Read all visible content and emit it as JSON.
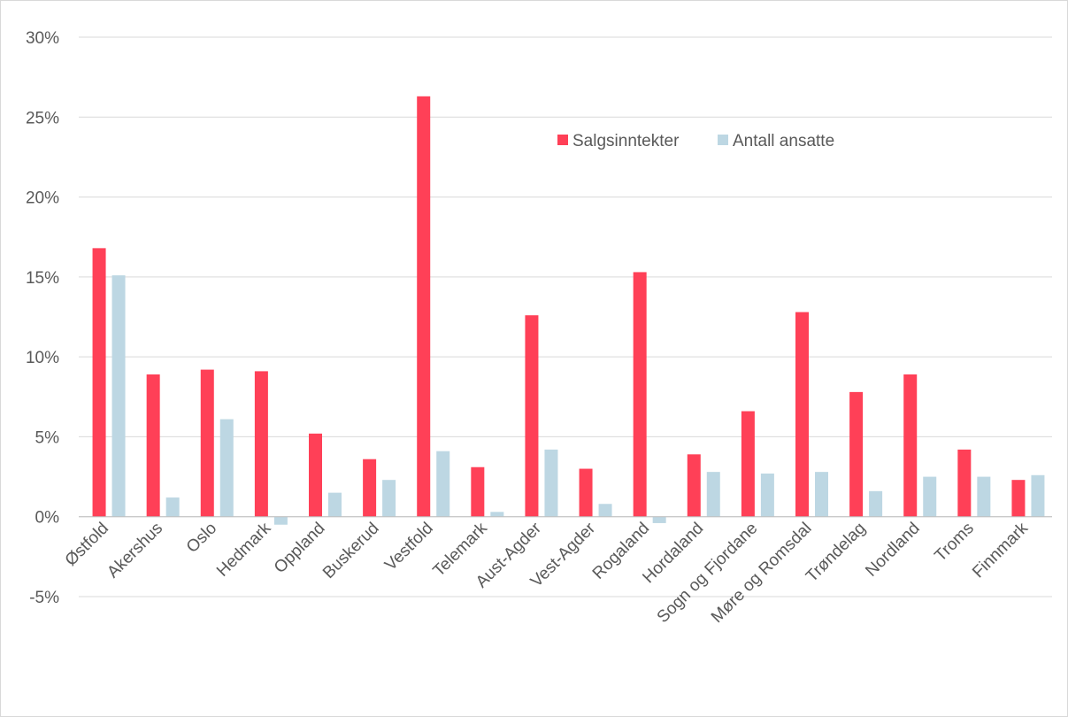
{
  "chart_data": {
    "type": "bar",
    "title": "",
    "xlabel": "",
    "ylabel": "",
    "categories": [
      "Østfold",
      "Akershus",
      "Oslo",
      "Hedmark",
      "Oppland",
      "Buskerud",
      "Vestfold",
      "Telemark",
      "Aust-Agder",
      "Vest-Agder",
      "Rogaland",
      "Hordaland",
      "Sogn og Fjordane",
      "Møre og Romsdal",
      "Trøndelag",
      "Nordland",
      "Troms",
      "Finnmark"
    ],
    "series": [
      {
        "name": "Salgsinntekter",
        "color": "#ff4057",
        "values": [
          16.8,
          8.9,
          9.2,
          9.1,
          5.2,
          3.6,
          26.3,
          3.1,
          12.6,
          3.0,
          15.3,
          3.9,
          6.6,
          12.8,
          7.8,
          8.9,
          4.2,
          2.3
        ]
      },
      {
        "name": "Antall ansatte",
        "color": "#bdd7e3",
        "values": [
          15.1,
          1.2,
          6.1,
          -0.5,
          1.5,
          2.3,
          4.1,
          0.3,
          4.2,
          0.8,
          -0.4,
          2.8,
          2.7,
          2.8,
          1.6,
          2.5,
          2.5,
          2.6
        ]
      }
    ],
    "ylim": [
      -5,
      30
    ],
    "yticks": [
      30,
      25,
      20,
      15,
      10,
      5,
      0,
      -5
    ],
    "ytick_labels": [
      "30%",
      "25%",
      "20%",
      "15%",
      "10%",
      "5%",
      "0%",
      "-5%"
    ],
    "grid": true,
    "legend": {
      "placement": "top-right, inside plot"
    }
  }
}
